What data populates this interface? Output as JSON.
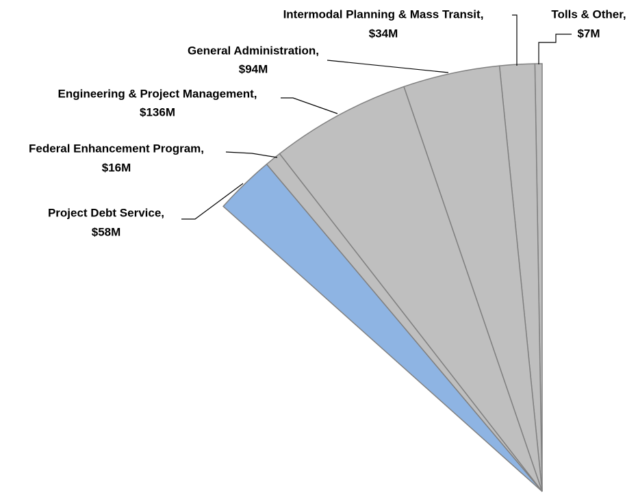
{
  "chart_data": {
    "type": "pie",
    "categories": [
      "Tolls & Other,",
      "Intermodal Planning & Mass Transit,",
      "General Administration,",
      "Engineering & Project Management,",
      "Federal Enhancement Program,",
      "Project Debt Service,"
    ],
    "values": [
      7,
      34,
      94,
      136,
      16,
      58
    ],
    "value_labels": [
      "$7M",
      "$34M",
      "$94M",
      "$136M",
      "$16M",
      "$58M"
    ],
    "colors": [
      "#bfbfbf",
      "#bfbfbf",
      "#bfbfbf",
      "#bfbfbf",
      "#bfbfbf",
      "#8eb4e3"
    ]
  }
}
